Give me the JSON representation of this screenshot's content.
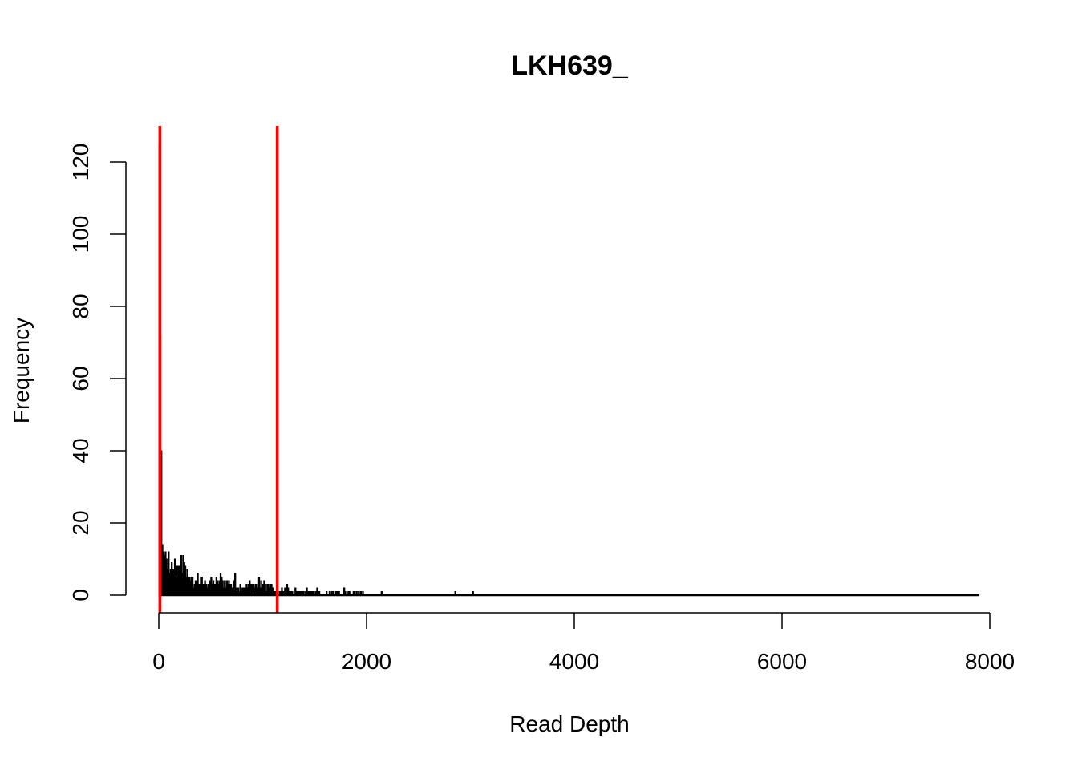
{
  "chart_data": {
    "type": "histogram",
    "title": "LKH639_",
    "xlabel": "Read Depth",
    "ylabel": "Frequency",
    "xlim": [
      0,
      8000
    ],
    "ylim": [
      0,
      125
    ],
    "x_ticks": [
      "0",
      "2000",
      "4000",
      "6000",
      "8000"
    ],
    "y_ticks": [
      "0",
      "20",
      "40",
      "60",
      "80",
      "100",
      "120"
    ],
    "bin_width": 10,
    "bin_start": 0,
    "bin_end": 7900,
    "bar_color": "#000000",
    "spike_bins": [
      {
        "x": 0,
        "frequency": 125
      },
      {
        "x": 10,
        "frequency": 72
      },
      {
        "x": 20,
        "frequency": 40
      },
      {
        "x": 30,
        "frequency": 14
      },
      {
        "x": 40,
        "frequency": 12
      },
      {
        "x": 50,
        "frequency": 11
      },
      {
        "x": 60,
        "frequency": 12
      },
      {
        "x": 70,
        "frequency": 10
      },
      {
        "x": 90,
        "frequency": 12
      },
      {
        "x": 150,
        "frequency": 10
      },
      {
        "x": 210,
        "frequency": 11
      },
      {
        "x": 230,
        "frequency": 11
      },
      {
        "x": 240,
        "frequency": 9
      },
      {
        "x": 370,
        "frequency": 6
      },
      {
        "x": 590,
        "frequency": 6
      },
      {
        "x": 730,
        "frequency": 6
      },
      {
        "x": 960,
        "frequency": 5
      },
      {
        "x": 1230,
        "frequency": 3
      },
      {
        "x": 1420,
        "frequency": 2
      },
      {
        "x": 1520,
        "frequency": 2
      },
      {
        "x": 1780,
        "frequency": 2
      },
      {
        "x": 1900,
        "frequency": 1
      },
      {
        "x": 2140,
        "frequency": 1
      },
      {
        "x": 2850,
        "frequency": 1
      },
      {
        "x": 3020,
        "frequency": 1
      }
    ],
    "vlines": [
      {
        "x": 10,
        "color": "#ff0000"
      },
      {
        "x": 1140,
        "color": "#ff0000"
      }
    ]
  }
}
